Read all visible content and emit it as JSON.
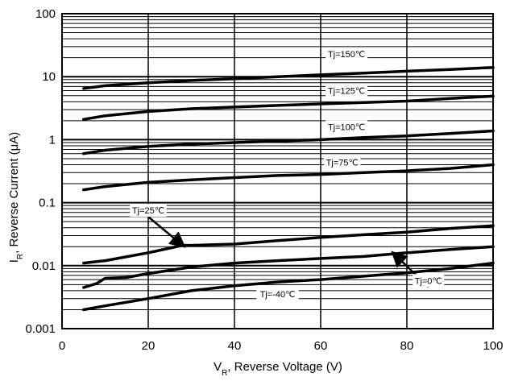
{
  "chart_data": {
    "type": "line",
    "xlabel": "VR, Reverse Voltage (V)",
    "xlabel_main": "V",
    "xlabel_sub": "R",
    "xlabel_rest": ", Reverse  Voltage (V)",
    "ylabel": "IR, Reverse Current (μA)",
    "ylabel_main": "I",
    "ylabel_sub": "R",
    "ylabel_rest": ", Reverse  Current  (μA)",
    "xlim": [
      0,
      100
    ],
    "ylim": [
      0.001,
      100
    ],
    "y_scale": "log",
    "grid": true,
    "x_ticks": [
      "0",
      "20",
      "40",
      "60",
      "80",
      "100"
    ],
    "y_ticks": [
      "0.001",
      "0.01",
      "0.1",
      "1",
      "10",
      "100"
    ],
    "line_color": "#000000",
    "grid_color": "#000000",
    "series": [
      {
        "name": "Tj=150℃",
        "x": [
          5,
          10,
          20,
          30,
          40,
          50,
          60,
          70,
          80,
          90,
          100
        ],
        "y": [
          6.5,
          7.2,
          8.0,
          8.7,
          9.3,
          10.0,
          10.7,
          11.4,
          12.2,
          13.0,
          14.0
        ]
      },
      {
        "name": "Tj=125℃",
        "x": [
          5,
          10,
          20,
          30,
          40,
          50,
          60,
          70,
          80,
          90,
          100
        ],
        "y": [
          2.1,
          2.4,
          2.8,
          3.1,
          3.3,
          3.5,
          3.7,
          3.9,
          4.1,
          4.5,
          4.9
        ]
      },
      {
        "name": "Tj=100℃",
        "x": [
          5,
          10,
          20,
          30,
          40,
          50,
          60,
          70,
          80,
          90,
          100
        ],
        "y": [
          0.6,
          0.68,
          0.78,
          0.85,
          0.9,
          0.95,
          1.0,
          1.08,
          1.15,
          1.25,
          1.38
        ]
      },
      {
        "name": "Tj=75℃",
        "x": [
          5,
          10,
          20,
          30,
          40,
          50,
          60,
          70,
          80,
          90,
          100
        ],
        "y": [
          0.16,
          0.18,
          0.21,
          0.23,
          0.25,
          0.27,
          0.28,
          0.3,
          0.32,
          0.35,
          0.4
        ]
      },
      {
        "name": "Tj=25℃",
        "x": [
          5,
          10,
          20,
          25,
          28,
          30,
          40,
          50,
          60,
          70,
          80,
          90,
          100
        ],
        "y": [
          0.011,
          0.012,
          0.016,
          0.019,
          0.021,
          0.021,
          0.022,
          0.025,
          0.028,
          0.031,
          0.034,
          0.039,
          0.043
        ]
      },
      {
        "name": "Tj=0℃",
        "x": [
          5,
          8,
          10,
          15,
          20,
          30,
          40,
          50,
          60,
          70,
          80,
          90,
          100
        ],
        "y": [
          0.0045,
          0.0052,
          0.0063,
          0.0065,
          0.0075,
          0.0095,
          0.011,
          0.012,
          0.013,
          0.014,
          0.016,
          0.018,
          0.02
        ]
      },
      {
        "name": "Tj=-40℃",
        "x": [
          5,
          10,
          20,
          30,
          40,
          50,
          60,
          70,
          80,
          90,
          100
        ],
        "y": [
          0.002,
          0.0023,
          0.003,
          0.004,
          0.0048,
          0.0055,
          0.006,
          0.0068,
          0.0077,
          0.009,
          0.011
        ]
      }
    ],
    "annotations": [
      {
        "text": "Tj=150℃",
        "series": 0,
        "x": 66,
        "y": 23
      },
      {
        "text": "Tj=125℃",
        "series": 1,
        "x": 66,
        "y": 6
      },
      {
        "text": "Tj=100℃",
        "series": 2,
        "x": 66,
        "y": 1.6
      },
      {
        "text": "Tj=75℃",
        "series": 3,
        "x": 65,
        "y": 0.44
      },
      {
        "text": "Tj=25℃",
        "series": 4,
        "x": 20,
        "y": 0.0755,
        "arrow_to": [
          28,
          0.021
        ]
      },
      {
        "text": "Tj=0℃",
        "series": 5,
        "x": 85,
        "y": 0.0058,
        "arrow_to": [
          77,
          0.0155
        ]
      },
      {
        "text": "Tj=-40℃",
        "series": 6,
        "x": 50,
        "y": 0.00355
      }
    ]
  }
}
